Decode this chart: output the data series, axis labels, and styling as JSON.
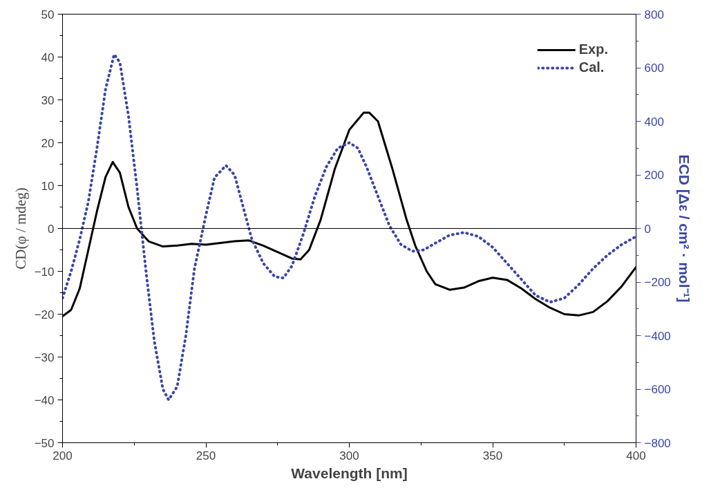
{
  "chart_data": {
    "type": "line",
    "xlabel": "Wavelength [nm]",
    "ylabel": "CD(φ / mdeg)",
    "y2label": "ECD [Δε / cm² · mol⁻¹]",
    "xlim": [
      200,
      400
    ],
    "xticks": [
      200,
      250,
      300,
      350,
      400
    ],
    "ylim": [
      -50,
      50
    ],
    "yticks": [
      -50,
      -40,
      -30,
      -20,
      -10,
      0,
      10,
      20,
      30,
      40,
      50
    ],
    "y2lim": [
      -800,
      800
    ],
    "y2ticks": [
      -800,
      -600,
      -400,
      -200,
      0,
      200,
      400,
      600,
      800
    ],
    "legend": "top right",
    "grid": false,
    "ref_lines": [
      {
        "axis": "y",
        "value": 0,
        "color": "#000000"
      }
    ],
    "series": [
      {
        "name": "Exp.",
        "color": "#000000",
        "line_style": "solid",
        "x": [
          200,
          203,
          206,
          209,
          212,
          215,
          217.5,
          220,
          223,
          226,
          230,
          235,
          240,
          245,
          250,
          255,
          260,
          265,
          270,
          275,
          280,
          283,
          286,
          290,
          295,
          300,
          305,
          307,
          310,
          315,
          320,
          323,
          327,
          330,
          335,
          340,
          345,
          350,
          355,
          360,
          365,
          370,
          375,
          380,
          385,
          390,
          395,
          400
        ],
        "values": [
          -20.5,
          -19,
          -14,
          -5,
          4,
          12,
          15.5,
          13,
          5,
          0,
          -3,
          -4.2,
          -4,
          -3.6,
          -3.8,
          -3.4,
          -3,
          -2.8,
          -4,
          -5.5,
          -7,
          -7.2,
          -5,
          2,
          14,
          23,
          27,
          27,
          25,
          14,
          2,
          -4,
          -10,
          -13,
          -14.3,
          -13.8,
          -12.3,
          -11.5,
          -12,
          -14,
          -16.5,
          -18.5,
          -20,
          -20.3,
          -19.5,
          -17,
          -13.5,
          -9
        ]
      },
      {
        "name": "Cal.",
        "color": "#3a45a8",
        "line_style": "dotted",
        "axis": "y2",
        "x": [
          200,
          203,
          206,
          209,
          212,
          215,
          218,
          220,
          223,
          226,
          229,
          232,
          235,
          237,
          240,
          243,
          246,
          250,
          253,
          257,
          260,
          263,
          266,
          270,
          274,
          277,
          280,
          284,
          288,
          292,
          296,
          300,
          303,
          306,
          310,
          314,
          318,
          322,
          326,
          330,
          335,
          340,
          345,
          350,
          355,
          360,
          365,
          370,
          375,
          380,
          385,
          390,
          395,
          400
        ],
        "values": [
          -260,
          -160,
          -40,
          100,
          300,
          520,
          650,
          620,
          420,
          150,
          -150,
          -420,
          -600,
          -640,
          -590,
          -400,
          -150,
          50,
          190,
          235,
          200,
          80,
          -40,
          -130,
          -180,
          -185,
          -140,
          -20,
          120,
          230,
          300,
          320,
          300,
          230,
          120,
          10,
          -60,
          -85,
          -80,
          -55,
          -25,
          -15,
          -30,
          -70,
          -130,
          -190,
          -250,
          -275,
          -260,
          -210,
          -150,
          -100,
          -60,
          -30
        ]
      }
    ]
  }
}
